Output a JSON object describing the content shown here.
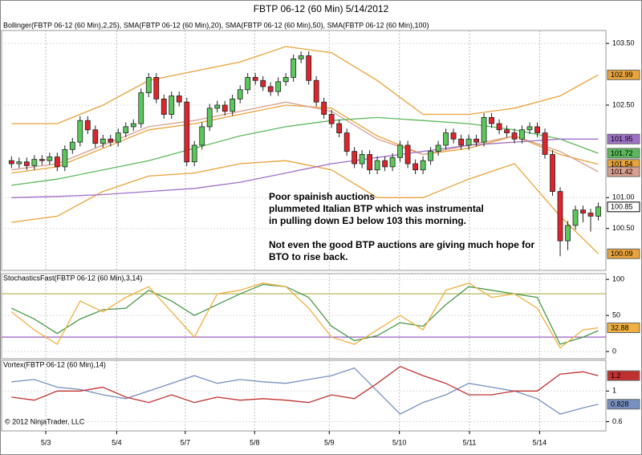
{
  "chart_data": [
    {
      "type": "candlestick",
      "title": "FBTP 06-12 (60 Min)  5/14/2012",
      "label": "Bollinger(FBTP 06-12 (60 Min),2,25), SMA(FBTP 06-12 (60 Min),20), SMA(FBTP 06-12 (60 Min),50), SMA(FBTP 06-12 (60 Min),100)",
      "annotation": [
        "Poor spainish auctions",
        "plummeted Italian BTP which was instrumental",
        "in pulling down EJ below 103 this morning.",
        "Not even the good BTP auctions are giving much hope for",
        "BTO to rise back."
      ],
      "xlim": [
        -1.3,
        78
      ],
      "xticks": [
        {
          "value": 4.5,
          "label": "5/3"
        },
        {
          "value": 13.8,
          "label": "5/4"
        },
        {
          "value": 22.8,
          "label": "5/7"
        },
        {
          "value": 31.9,
          "label": "5/8"
        },
        {
          "value": 41.7,
          "label": "5/9"
        },
        {
          "value": 50.9,
          "label": "5/10"
        },
        {
          "value": 60.1,
          "label": "5/11"
        },
        {
          "value": 69.3,
          "label": "5/14"
        }
      ],
      "ylim": [
        99.82,
        103.71
      ],
      "yticks": [
        {
          "value": 100.5,
          "label": "100.50"
        },
        {
          "value": 101,
          "label": "101.00"
        },
        {
          "value": 102.5,
          "label": "102.50"
        },
        {
          "value": 103.5,
          "label": "103.50"
        }
      ],
      "up_color": "#5cc85c",
      "down_color": "#e0242c",
      "open": [
        101.6,
        101.55,
        101.58,
        101.52,
        101.62,
        101.6,
        101.66,
        101.5,
        101.78,
        101.9,
        102.25,
        102.1,
        101.88,
        101.95,
        101.9,
        102.05,
        102.15,
        102.2,
        102.7,
        102.95,
        102.6,
        102.35,
        102.65,
        102.55,
        101.58,
        101.85,
        102.15,
        102.45,
        102.5,
        102.4,
        102.6,
        102.75,
        102.95,
        102.9,
        102.8,
        102.72,
        102.88,
        102.95,
        103.25,
        103.3,
        102.9,
        102.55,
        102.35,
        102.2,
        102.05,
        101.75,
        101.55,
        101.7,
        101.45,
        101.6,
        101.5,
        101.65,
        101.85,
        101.55,
        101.45,
        101.6,
        101.75,
        101.85,
        102.05,
        101.95,
        101.85,
        101.95,
        101.9,
        102.3,
        102.2,
        102.1,
        102.05,
        101.95,
        102.1,
        102.15,
        102.05,
        101.7,
        101.1,
        100.3,
        100.55,
        100.8,
        100.75,
        100.7
      ],
      "high": [
        101.67,
        101.65,
        101.65,
        101.69,
        101.69,
        101.73,
        101.73,
        101.85,
        101.97,
        102.32,
        102.32,
        102.17,
        102.02,
        102.02,
        102.12,
        102.22,
        102.27,
        102.77,
        103.02,
        103.02,
        102.67,
        102.72,
        102.72,
        102.62,
        101.92,
        102.22,
        102.52,
        102.57,
        102.57,
        102.67,
        102.82,
        103.02,
        103.02,
        102.97,
        102.87,
        102.95,
        103.02,
        103.32,
        103.37,
        103.37,
        102.97,
        102.62,
        102.42,
        102.27,
        102.12,
        101.82,
        101.77,
        101.77,
        101.67,
        101.67,
        101.72,
        101.92,
        101.92,
        101.62,
        101.67,
        101.82,
        101.92,
        102.12,
        102.12,
        102.02,
        102.02,
        102.02,
        102.37,
        102.37,
        102.27,
        102.17,
        102.12,
        102.17,
        102.22,
        102.22,
        102.12,
        101.77,
        101.17,
        100.62,
        100.87,
        100.87,
        100.82,
        100.92
      ],
      "low": [
        101.48,
        101.48,
        101.45,
        101.45,
        101.53,
        101.53,
        101.43,
        101.43,
        101.71,
        101.83,
        102.03,
        101.81,
        101.81,
        101.83,
        101.83,
        101.98,
        102.08,
        102.13,
        102.63,
        102.53,
        102.28,
        102.28,
        102.48,
        101.51,
        101.51,
        101.78,
        102.08,
        102.38,
        102.33,
        102.33,
        102.53,
        102.68,
        102.83,
        102.73,
        102.65,
        102.65,
        102.81,
        102.88,
        103.18,
        102.83,
        102.48,
        102.28,
        102.13,
        101.98,
        101.68,
        101.48,
        101.48,
        101.38,
        101.38,
        101.43,
        101.43,
        101.58,
        101.48,
        101.38,
        101.38,
        101.53,
        101.68,
        101.78,
        101.88,
        101.78,
        101.78,
        101.83,
        101.83,
        102.13,
        102.03,
        101.98,
        101.88,
        101.88,
        102.03,
        101.98,
        101.63,
        101.03,
        100.05,
        100.15,
        100.48,
        100.6,
        100.45,
        100.63
      ],
      "close": [
        101.55,
        101.58,
        101.52,
        101.62,
        101.6,
        101.66,
        101.5,
        101.78,
        101.9,
        102.25,
        102.1,
        101.88,
        101.95,
        101.9,
        102.05,
        102.15,
        102.2,
        102.7,
        102.95,
        102.6,
        102.35,
        102.65,
        102.55,
        101.58,
        101.85,
        102.15,
        102.45,
        102.5,
        102.4,
        102.6,
        102.75,
        102.95,
        102.9,
        102.8,
        102.72,
        102.88,
        102.95,
        103.25,
        103.3,
        102.9,
        102.55,
        102.35,
        102.2,
        102.05,
        101.75,
        101.55,
        101.7,
        101.45,
        101.6,
        101.5,
        101.65,
        101.85,
        101.55,
        101.45,
        101.6,
        101.75,
        101.85,
        102.05,
        101.95,
        101.85,
        101.95,
        101.9,
        102.3,
        102.2,
        102.1,
        102.05,
        101.95,
        102.1,
        102.15,
        102.05,
        101.7,
        101.1,
        100.3,
        100.55,
        100.8,
        100.75,
        100.7,
        100.85
      ],
      "overlay_x": [
        0,
        6,
        12,
        18,
        24,
        30,
        36,
        42,
        48,
        54,
        60,
        66,
        72,
        77
      ],
      "overlays": [
        {
          "color": "#e8a33a",
          "values": [
            102.2,
            102.2,
            102.5,
            102.9,
            103.05,
            103.2,
            103.45,
            103.35,
            102.9,
            102.35,
            102.35,
            102.45,
            102.65,
            102.99
          ]
        },
        {
          "color": "#e8a33a",
          "values": [
            101.4,
            101.5,
            101.8,
            102.1,
            102.2,
            102.35,
            102.5,
            102.45,
            102.0,
            101.7,
            101.8,
            102.0,
            101.7,
            101.54
          ]
        },
        {
          "color": "#e8a33a",
          "values": [
            100.6,
            100.7,
            101.1,
            101.35,
            101.4,
            101.55,
            101.6,
            101.45,
            101.0,
            101.0,
            101.3,
            101.55,
            100.7,
            100.09
          ]
        },
        {
          "color": "#d8a090",
          "values": [
            101.45,
            101.55,
            101.85,
            102.15,
            102.25,
            102.4,
            102.55,
            102.4,
            101.95,
            101.7,
            101.85,
            102.0,
            101.75,
            101.42
          ]
        },
        {
          "color": "#5cb85c",
          "values": [
            101.2,
            101.3,
            101.45,
            101.6,
            101.8,
            102.0,
            102.15,
            102.25,
            102.3,
            102.25,
            102.2,
            102.1,
            101.95,
            101.72
          ]
        },
        {
          "color": "#a070c8",
          "values": [
            101.0,
            101.02,
            101.05,
            101.1,
            101.15,
            101.25,
            101.4,
            101.55,
            101.65,
            101.75,
            101.85,
            101.9,
            101.95,
            101.95
          ]
        }
      ]
    },
    {
      "type": "line",
      "label": "StochasticsFast(FBTP 06-12 (60 Min),3,14)",
      "ylim": [
        -10,
        108
      ],
      "yticks": [
        0,
        50,
        100
      ],
      "levels": [
        {
          "value": 80,
          "color": "#b8b860"
        },
        {
          "value": 20,
          "color": "#8a4ab8"
        }
      ],
      "x": [
        0,
        3,
        6,
        9,
        12,
        15,
        18,
        21,
        24,
        27,
        30,
        33,
        36,
        39,
        42,
        45,
        48,
        51,
        54,
        57,
        60,
        63,
        66,
        69,
        72,
        75,
        77
      ],
      "series": [
        {
          "color": "#4a9a4a",
          "value_box": false,
          "values": [
            60,
            45,
            25,
            45,
            58,
            60,
            85,
            70,
            50,
            65,
            80,
            93,
            90,
            75,
            35,
            15,
            22,
            40,
            35,
            65,
            90,
            85,
            80,
            75,
            10,
            20,
            29
          ]
        },
        {
          "color": "#f0b040",
          "value_box": true,
          "values": [
            55,
            30,
            10,
            70,
            55,
            75,
            90,
            55,
            20,
            80,
            85,
            95,
            90,
            60,
            20,
            10,
            30,
            50,
            30,
            85,
            95,
            75,
            80,
            60,
            5,
            30,
            32.88
          ]
        }
      ]
    },
    {
      "type": "line",
      "label": "Vortex(FBTP 06-12 (60 Min),14)",
      "footer": "© 2012 NinjaTrader, LLC",
      "ylim": [
        0.48,
        1.4
      ],
      "yticks": [
        0.6,
        1
      ],
      "x": [
        0,
        3,
        6,
        9,
        12,
        15,
        18,
        21,
        24,
        27,
        30,
        33,
        36,
        39,
        42,
        45,
        48,
        51,
        54,
        57,
        60,
        63,
        66,
        69,
        72,
        75,
        77
      ],
      "series": [
        {
          "color": "#7890c0",
          "value_box": true,
          "values": [
            1.12,
            1.15,
            1.05,
            1.02,
            0.95,
            0.9,
            1.0,
            1.1,
            1.2,
            1.1,
            1.15,
            1.12,
            1.1,
            1.15,
            1.2,
            1.3,
            1.0,
            0.7,
            0.85,
            0.95,
            1.1,
            1.05,
            1.0,
            0.9,
            0.7,
            0.78,
            0.828
          ]
        },
        {
          "color": "#c03030",
          "value_box": true,
          "values": [
            0.92,
            0.88,
            1.0,
            1.0,
            1.05,
            0.92,
            0.85,
            0.95,
            0.85,
            0.92,
            0.88,
            0.9,
            0.88,
            0.85,
            0.95,
            0.9,
            1.1,
            1.32,
            1.2,
            1.1,
            0.95,
            0.95,
            1.0,
            1.0,
            1.22,
            1.25,
            1.2
          ]
        }
      ]
    }
  ]
}
